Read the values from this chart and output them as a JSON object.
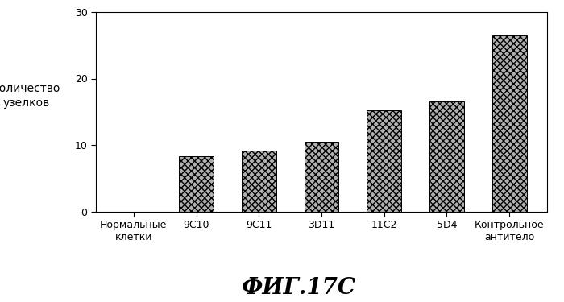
{
  "categories": [
    "Нормальные\nклетки",
    "9C10",
    "9C11",
    "3D11",
    "11C2",
    "5D4",
    "Контрольное\nантитело"
  ],
  "values": [
    0,
    8.3,
    9.1,
    10.5,
    15.2,
    16.5,
    26.5
  ],
  "bar_color": "#b0b0b0",
  "bar_edgecolor": "#000000",
  "ylabel_line1": "Количество",
  "ylabel_line2": "узелков",
  "ylim": [
    0,
    30
  ],
  "yticks": [
    0,
    10,
    20,
    30
  ],
  "title": "ФИГ.17C",
  "title_fontsize": 20,
  "ylabel_fontsize": 10,
  "tick_fontsize": 9,
  "hatch": "xxxx",
  "background_color": "#ffffff"
}
